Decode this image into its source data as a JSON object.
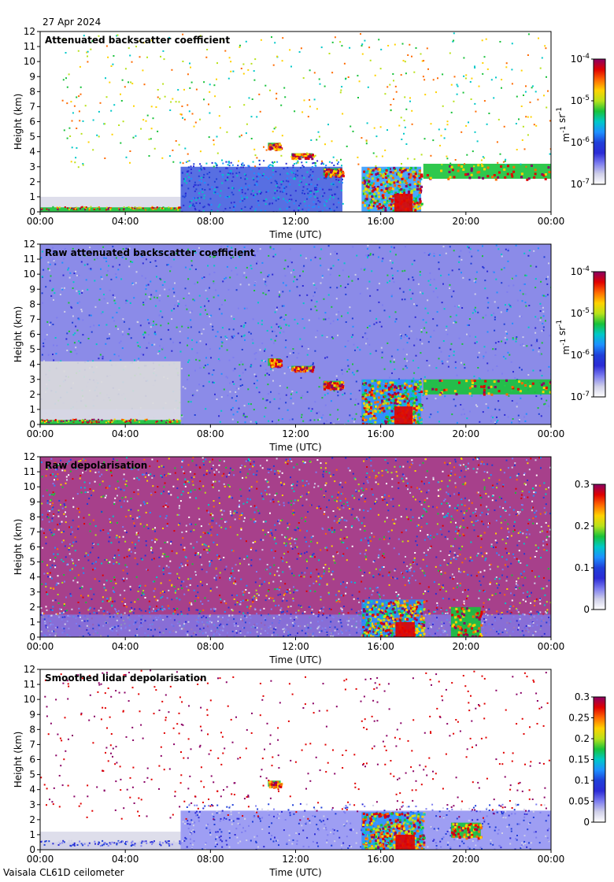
{
  "header": {
    "date": "27 Apr 2024"
  },
  "footer": {
    "instrument": "Vaisala CL61D ceilometer"
  },
  "colors": {
    "background": "#ffffff",
    "frame": "#000000",
    "colormap": [
      "#ffffff",
      "#cfcfe8",
      "#7d7def",
      "#2b2bd6",
      "#1f3fd8",
      "#1e90ff",
      "#00c8c8",
      "#18c23a",
      "#b8e21a",
      "#ffd200",
      "#ff6a00",
      "#e00000",
      "#8a0064"
    ]
  },
  "chart_data": [
    {
      "type": "heatmap",
      "title": "Attenuated backscatter coefficient",
      "xlabel": "Time (UTC)",
      "ylabel": "Height (km)",
      "x_ticks": [
        "00:00",
        "04:00",
        "08:00",
        "12:00",
        "16:00",
        "20:00",
        "00:00"
      ],
      "xlim_hours": [
        0,
        24
      ],
      "y_ticks": [
        0,
        1,
        2,
        3,
        4,
        5,
        6,
        7,
        8,
        9,
        10,
        11,
        12
      ],
      "ylim": [
        0,
        12
      ],
      "colorbar": {
        "scale": "log",
        "range": [
          1e-07,
          0.0001
        ],
        "ticks": [
          "10",
          "10",
          "10",
          "10"
        ],
        "tick_exponents": [
          "-7",
          "-6",
          "-5",
          "-4"
        ],
        "label": "m sr",
        "label_exponents": [
          "-1",
          "-1"
        ]
      },
      "features": [
        {
          "kind": "boundary_layer",
          "start_h": 0,
          "end_h": 6.6,
          "height_km": 0.3,
          "level": "high"
        },
        {
          "kind": "aerosol_layer",
          "start_h": 6.6,
          "end_h": 14.2,
          "top_km": 3.0,
          "level": "medium"
        },
        {
          "kind": "cloud",
          "start_h": 10.7,
          "end_h": 11.3,
          "base_km": 4.2,
          "top_km": 4.6
        },
        {
          "kind": "cloud",
          "start_h": 11.8,
          "end_h": 12.8,
          "base_km": 3.6,
          "top_km": 3.9
        },
        {
          "kind": "cloud",
          "start_h": 13.3,
          "end_h": 14.2,
          "base_km": 2.4,
          "top_km": 2.9
        },
        {
          "kind": "precipitation",
          "start_h": 15.1,
          "end_h": 17.9,
          "top_km": 3.0
        },
        {
          "kind": "cloud",
          "start_h": 18.0,
          "end_h": 24.0,
          "base_km": 2.2,
          "top_km": 3.2
        }
      ]
    },
    {
      "type": "heatmap",
      "title": "Raw attenuated backscatter coefficient",
      "xlabel": "Time (UTC)",
      "ylabel": "Height (km)",
      "x_ticks": [
        "00:00",
        "04:00",
        "08:00",
        "12:00",
        "16:00",
        "20:00",
        "00:00"
      ],
      "xlim_hours": [
        0,
        24
      ],
      "y_ticks": [
        0,
        1,
        2,
        3,
        4,
        5,
        6,
        7,
        8,
        9,
        10,
        11,
        12
      ],
      "ylim": [
        0,
        12
      ],
      "colorbar": {
        "scale": "log",
        "range": [
          1e-07,
          0.0001
        ],
        "ticks": [
          "10",
          "10",
          "10",
          "10"
        ],
        "tick_exponents": [
          "-7",
          "-6",
          "-5",
          "-4"
        ],
        "label": "m sr",
        "label_exponents": [
          "-1",
          "-1"
        ]
      },
      "features": [
        {
          "kind": "noise_fill",
          "start_h": 0,
          "end_h": 24,
          "level": "low"
        },
        {
          "kind": "boundary_layer",
          "start_h": 0,
          "end_h": 6.6,
          "height_km": 0.3,
          "level": "high"
        },
        {
          "kind": "cloud",
          "start_h": 10.7,
          "end_h": 11.3,
          "base_km": 3.9,
          "top_km": 4.4
        },
        {
          "kind": "cloud",
          "start_h": 11.8,
          "end_h": 12.8,
          "base_km": 3.6,
          "top_km": 3.9
        },
        {
          "kind": "cloud",
          "start_h": 13.3,
          "end_h": 14.2,
          "base_km": 2.4,
          "top_km": 2.9
        },
        {
          "kind": "precipitation",
          "start_h": 15.1,
          "end_h": 17.9,
          "top_km": 3.0
        },
        {
          "kind": "cloud",
          "start_h": 18.0,
          "end_h": 24.0,
          "base_km": 2.0,
          "top_km": 3.0
        }
      ]
    },
    {
      "type": "heatmap",
      "title": "Raw depolarisation",
      "xlabel": "Time (UTC)",
      "ylabel": "Height (km)",
      "x_ticks": [
        "00:00",
        "04:00",
        "08:00",
        "12:00",
        "16:00",
        "20:00",
        "00:00"
      ],
      "xlim_hours": [
        0,
        24
      ],
      "y_ticks": [
        0,
        1,
        2,
        3,
        4,
        5,
        6,
        7,
        8,
        9,
        10,
        11,
        12
      ],
      "ylim": [
        0,
        12
      ],
      "colorbar": {
        "scale": "linear",
        "range": [
          0,
          0.3
        ],
        "ticks": [
          "0",
          "0.1",
          "0.2",
          "0.3"
        ]
      },
      "features": [
        {
          "kind": "noise_fill",
          "start_h": 0,
          "end_h": 24,
          "level": "max"
        },
        {
          "kind": "aerosol_layer",
          "start_h": 0,
          "end_h": 24,
          "top_km": 1.5,
          "level": "low"
        },
        {
          "kind": "precipitation",
          "start_h": 15.1,
          "end_h": 18.0,
          "top_km": 2.5
        },
        {
          "kind": "cloud",
          "start_h": 19.3,
          "end_h": 20.7,
          "base_km": 0.0,
          "top_km": 2.0
        }
      ]
    },
    {
      "type": "heatmap",
      "title": "Smoothed lidar depolarisation",
      "xlabel": "Time (UTC)",
      "ylabel": "Height (km)",
      "x_ticks": [
        "00:00",
        "04:00",
        "08:00",
        "12:00",
        "16:00",
        "20:00",
        "00:00"
      ],
      "xlim_hours": [
        0,
        24
      ],
      "y_ticks": [
        0,
        1,
        2,
        3,
        4,
        5,
        6,
        7,
        8,
        9,
        10,
        11,
        12
      ],
      "ylim": [
        0,
        12
      ],
      "colorbar": {
        "scale": "linear",
        "range": [
          0,
          0.3
        ],
        "ticks": [
          "0",
          "0.05",
          "0.1",
          "0.15",
          "0.2",
          "0.25",
          "0.3"
        ]
      },
      "features": [
        {
          "kind": "boundary_layer",
          "start_h": 0,
          "end_h": 6.6,
          "height_km": 0.5,
          "level": "low"
        },
        {
          "kind": "aerosol_layer",
          "start_h": 6.6,
          "end_h": 24.0,
          "top_km": 2.6,
          "level": "low"
        },
        {
          "kind": "cloud",
          "start_h": 10.7,
          "end_h": 11.3,
          "base_km": 4.2,
          "top_km": 4.6
        },
        {
          "kind": "precipitation",
          "start_h": 15.1,
          "end_h": 18.0,
          "top_km": 2.5
        },
        {
          "kind": "cloud",
          "start_h": 19.3,
          "end_h": 20.7,
          "base_km": 0.8,
          "top_km": 1.8
        }
      ]
    }
  ]
}
